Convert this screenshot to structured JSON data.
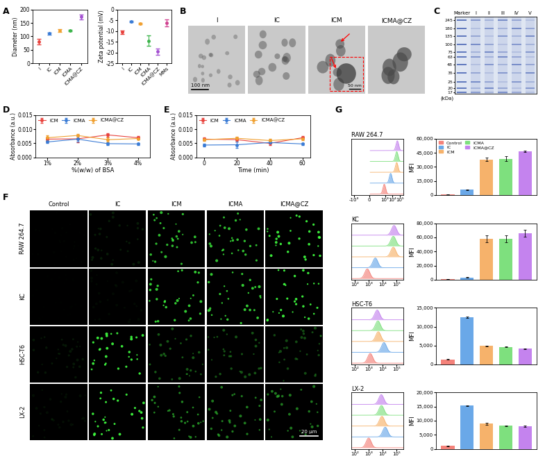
{
  "panel_labels": [
    "A",
    "B",
    "C",
    "D",
    "E",
    "F",
    "G"
  ],
  "chart_data": [
    {
      "type": "scatter",
      "ylabel": "Diameter (nm)",
      "categories": [
        "I",
        "IC",
        "ICM",
        "ICMA",
        "ICMA@CZ"
      ],
      "values": [
        80,
        111,
        121,
        122,
        173
      ],
      "error": [
        10,
        4,
        5,
        3,
        9
      ],
      "colors": [
        "#e8413c",
        "#3a7bd5",
        "#f0a030",
        "#3cb44b",
        "#a34fd1"
      ],
      "ylim": [
        0,
        200
      ],
      "yticks": [
        0,
        50,
        100,
        150,
        200
      ],
      "marker": "o"
    },
    {
      "type": "scatter",
      "ylabel": "Zeta potential (mV)",
      "categories": [
        "I",
        "IC",
        "ICM",
        "ICMA",
        "ICMA@CZ",
        "MMs"
      ],
      "values": [
        -10.5,
        -5.6,
        -6.6,
        -14.5,
        -19.5,
        -6.2
      ],
      "error": [
        0.8,
        0.4,
        0.4,
        2.5,
        1.5,
        1.5
      ],
      "colors": [
        "#e8413c",
        "#3a7bd5",
        "#f0a030",
        "#3cb44b",
        "#a34fd1",
        "#d0408f"
      ],
      "ylim": [
        -25,
        0
      ],
      "yticks": [
        -25,
        -20,
        -15,
        -10,
        -5,
        0
      ],
      "marker": "o"
    },
    {
      "type": "line",
      "xlabel": "%(w/w) of BSA",
      "ylabel": "Absorbance (a.u.)",
      "categories": [
        "1%",
        "2%",
        "3%",
        "4%"
      ],
      "series": [
        {
          "name": "ICM",
          "color": "#e8413c",
          "values": [
            0.0065,
            0.0066,
            0.008,
            0.007
          ],
          "error": [
            0.0007,
            0.0012,
            0.0006,
            0.0005
          ]
        },
        {
          "name": "ICMA",
          "color": "#3a7bd5",
          "values": [
            0.0055,
            0.0065,
            0.0049,
            0.0048
          ],
          "error": [
            0.0005,
            0.001,
            0.0005,
            0.0003
          ]
        },
        {
          "name": "ICMA@CZ",
          "color": "#f0a030",
          "values": [
            0.007,
            0.0078,
            0.0063,
            0.0067
          ],
          "error": [
            0.0008,
            0.0006,
            0.0008,
            0.0004
          ]
        }
      ],
      "ylim": [
        0,
        0.015
      ],
      "yticks": [
        {
          "value": 0,
          "label": "0.000"
        },
        0.005,
        {
          "value": 0.01,
          "label": "0.010"
        },
        0.015
      ],
      "marker": "o",
      "legend": "upper left"
    },
    {
      "type": "line",
      "xlabel": "Time (min)",
      "ylabel": "Absorbance (a.u.)",
      "x": [
        0,
        20,
        40,
        60
      ],
      "series": [
        {
          "name": "ICM",
          "color": "#e8413c",
          "values": [
            0.0065,
            0.0063,
            0.005,
            0.007
          ],
          "error": [
            0.0005,
            0.0008,
            0.0005,
            0.0005
          ]
        },
        {
          "name": "ICMA",
          "color": "#3a7bd5",
          "values": [
            0.0044,
            0.0045,
            0.0053,
            0.0048
          ],
          "error": [
            0.0004,
            0.0012,
            0.0004,
            0.0003
          ]
        },
        {
          "name": "ICMA@CZ",
          "color": "#f0a030",
          "values": [
            0.0063,
            0.0068,
            0.006,
            0.0066
          ],
          "error": [
            0.0005,
            0.0006,
            0.0006,
            0.0004
          ]
        }
      ],
      "xlim": [
        -5,
        65
      ],
      "xticks": [
        0,
        20,
        40,
        60
      ],
      "ylim": [
        0,
        0.015
      ],
      "yticks": [
        {
          "value": 0,
          "label": "0.000"
        },
        0.005,
        {
          "value": 0.01,
          "label": "0.010"
        },
        0.015
      ],
      "marker": "o",
      "legend": "upper left"
    },
    {
      "type": "bar",
      "title": "RAW 264.7",
      "ylabel": "MFI",
      "categories": [
        "Control",
        "IC",
        "ICM",
        "ICMA",
        "ICMA@CZ"
      ],
      "colors": [
        "#f4827a",
        "#6aa8e8",
        "#f6b26b",
        "#7ee07e",
        "#c483ee"
      ],
      "values": [
        800,
        5800,
        38000,
        38500,
        46200
      ],
      "error": [
        100,
        300,
        2200,
        2500,
        800
      ],
      "ylim": [
        0,
        60000
      ],
      "yticks": [
        0,
        {
          "value": 15000,
          "label": "15,000"
        },
        {
          "value": 30000,
          "label": "30,000"
        },
        {
          "value": 45000,
          "label": "45,000"
        },
        {
          "value": 60000,
          "label": "60,000"
        }
      ],
      "tick_labels": "y",
      "legend": "upper left",
      "histogram": {
        "type": "ridgeline",
        "log": "x",
        "xlim": [
          -2000,
          300000
        ],
        "xticks": [
          {
            "value": -1000,
            "label": "-10³"
          },
          0,
          {
            "value": 1000,
            "label": "10³"
          },
          {
            "value": 10000,
            "label": "10⁴"
          },
          {
            "value": 100000,
            "label": "10⁵"
          }
        ]
      }
    },
    {
      "type": "bar",
      "title": "KC",
      "ylabel": "MFI",
      "categories": [
        "Control",
        "IC",
        "ICM",
        "ICMA",
        "ICMA@CZ"
      ],
      "colors": [
        "#f4827a",
        "#6aa8e8",
        "#f6b26b",
        "#7ee07e",
        "#c483ee"
      ],
      "values": [
        800,
        3000,
        58000,
        58000,
        65500
      ],
      "error": [
        100,
        300,
        5000,
        5000,
        5000
      ],
      "ylim": [
        0,
        80000
      ],
      "yticks": [
        0,
        {
          "value": 20000,
          "label": "20,000"
        },
        {
          "value": 40000,
          "label": "40,000"
        },
        {
          "value": 60000,
          "label": "60,000"
        },
        {
          "value": 80000,
          "label": "80,000"
        }
      ],
      "tick_labels": "y",
      "histogram": {
        "type": "ridgeline",
        "log": "x",
        "xlim": [
          60,
          300000
        ],
        "xticks": [
          {
            "value": 100,
            "label": "10²"
          },
          {
            "value": 1000,
            "label": "10³"
          },
          {
            "value": 10000,
            "label": "10⁴"
          },
          {
            "value": 100000,
            "label": "10⁵"
          }
        ]
      }
    },
    {
      "type": "bar",
      "title": "HSC-T6",
      "ylabel": "MFI",
      "categories": [
        "Control",
        "IC",
        "ICM",
        "ICMA",
        "ICMA@CZ"
      ],
      "colors": [
        "#f4827a",
        "#6aa8e8",
        "#f6b26b",
        "#7ee07e",
        "#c483ee"
      ],
      "values": [
        1300,
        12500,
        4900,
        4600,
        4100
      ],
      "error": [
        60,
        200,
        100,
        80,
        100
      ],
      "ylim": [
        0,
        15000
      ],
      "yticks": [
        0,
        {
          "value": 5000,
          "label": "5,000"
        },
        {
          "value": 10000,
          "label": "10,000"
        },
        {
          "value": 15000,
          "label": "15,000"
        }
      ],
      "tick_labels": "y",
      "histogram": {
        "type": "ridgeline",
        "log": "x",
        "xlim": [
          60,
          300000
        ],
        "xticks": [
          {
            "value": 100,
            "label": "10²"
          },
          {
            "value": 1000,
            "label": "10³"
          },
          {
            "value": 10000,
            "label": "10⁴"
          },
          {
            "value": 100000,
            "label": "10⁵"
          }
        ]
      }
    },
    {
      "type": "bar",
      "title": "LX-2",
      "ylabel": "MFI",
      "categories": [
        "Control",
        "IC",
        "ICM",
        "ICMA",
        "ICMA@CZ"
      ],
      "colors": [
        "#f4827a",
        "#6aa8e8",
        "#f6b26b",
        "#7ee07e",
        "#c483ee"
      ],
      "values": [
        1000,
        15300,
        8900,
        8200,
        8000
      ],
      "error": [
        50,
        200,
        300,
        150,
        300
      ],
      "ylim": [
        0,
        20000
      ],
      "yticks": [
        0,
        {
          "value": 5000,
          "label": "5,000"
        },
        {
          "value": 10000,
          "label": "10,000"
        },
        {
          "value": 15000,
          "label": "15,000"
        },
        {
          "value": 20000,
          "label": "20,000"
        }
      ],
      "tick_labels": "y",
      "histogram": {
        "type": "ridgeline",
        "log": "x",
        "xlim": [
          60,
          300000
        ],
        "xticks": [
          {
            "value": 100,
            "label": "10²"
          },
          {
            "value": 1000,
            "label": "10³"
          },
          {
            "value": 10000,
            "label": "10⁴"
          },
          {
            "value": 100000,
            "label": "10⁵"
          }
        ]
      }
    }
  ],
  "tem": {
    "panels": [
      "I",
      "IC",
      "ICM",
      "ICMA@CZ"
    ],
    "scale_bars": [
      "100 nm",
      "50 nm"
    ]
  },
  "gel": {
    "type": "gel",
    "lanes": [
      "Marker",
      "I",
      "II",
      "III",
      "IV",
      "V"
    ],
    "log": "y",
    "ylim": [
      16,
      280
    ],
    "yticks": [
      245,
      180,
      135,
      100,
      75,
      63,
      48,
      35,
      25,
      20,
      17
    ],
    "ylabel": "(kDa)"
  },
  "microscopy": {
    "columns": [
      "Control",
      "IC",
      "ICM",
      "ICMA",
      "ICMA@CZ"
    ],
    "rows": [
      "RAW 264.7",
      "KC",
      "HSC-T6",
      "LX-2"
    ],
    "scale_bar": "20 μm"
  }
}
